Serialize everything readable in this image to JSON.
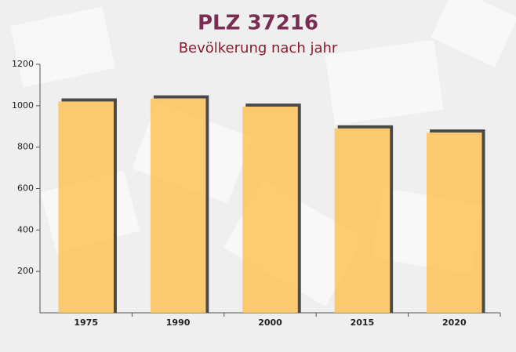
{
  "chart_data": {
    "type": "bar",
    "title": "PLZ 37216",
    "subtitle": "Bevölkerung nach jahr",
    "categories": [
      "1975",
      "1990",
      "2000",
      "2015",
      "2020"
    ],
    "values": [
      1020,
      1035,
      995,
      890,
      870
    ],
    "color": "#ffc04d",
    "ylim": [
      0,
      1200
    ],
    "yticks": [
      200,
      400,
      600,
      800,
      1000,
      1200
    ]
  }
}
